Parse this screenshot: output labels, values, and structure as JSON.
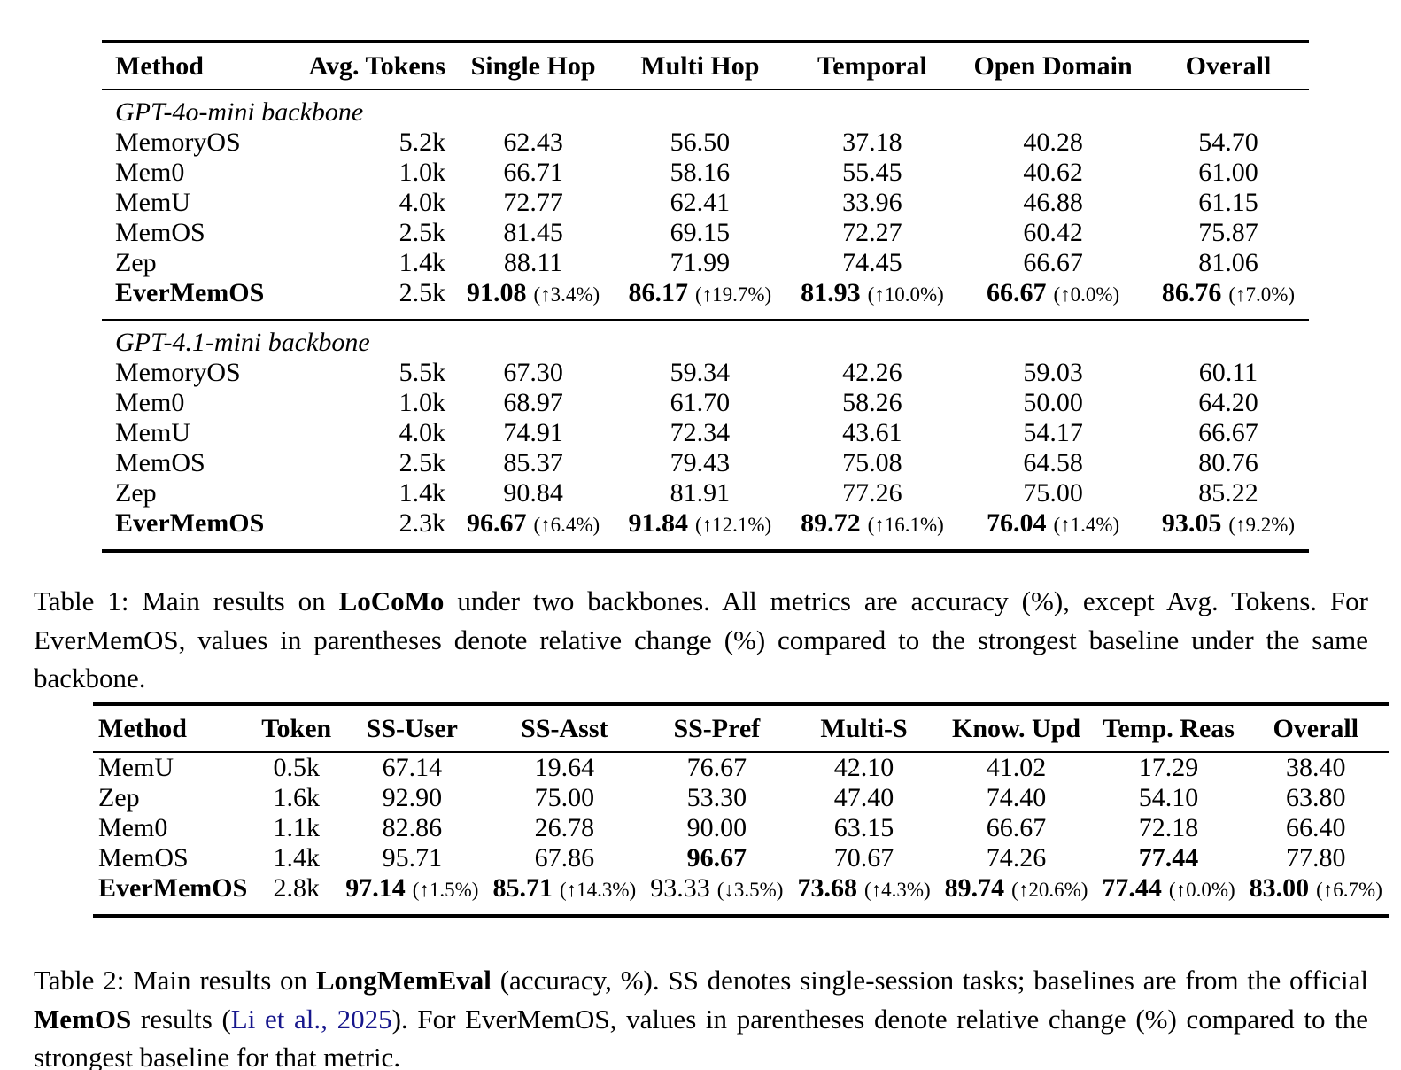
{
  "colors": {
    "background": "#ffffff",
    "text": "#000000",
    "citation_link": "#16168c"
  },
  "table1": {
    "columns": [
      "Method",
      "Avg. Tokens",
      "Single Hop",
      "Multi Hop",
      "Temporal",
      "Open Domain",
      "Overall"
    ],
    "groups": [
      {
        "label": "GPT-4o-mini backbone",
        "rows": [
          {
            "method": "MemoryOS",
            "b": false,
            "tokens": "5.2k",
            "metrics": [
              {
                "v": "62.43"
              },
              {
                "v": "56.50"
              },
              {
                "v": "37.18"
              },
              {
                "v": "40.28"
              },
              {
                "v": "54.70"
              }
            ]
          },
          {
            "method": "Mem0",
            "b": false,
            "tokens": "1.0k",
            "metrics": [
              {
                "v": "66.71"
              },
              {
                "v": "58.16"
              },
              {
                "v": "55.45"
              },
              {
                "v": "40.62"
              },
              {
                "v": "61.00"
              }
            ]
          },
          {
            "method": "MemU",
            "b": false,
            "tokens": "4.0k",
            "metrics": [
              {
                "v": "72.77"
              },
              {
                "v": "62.41"
              },
              {
                "v": "33.96"
              },
              {
                "v": "46.88"
              },
              {
                "v": "61.15"
              }
            ]
          },
          {
            "method": "MemOS",
            "b": false,
            "tokens": "2.5k",
            "metrics": [
              {
                "v": "81.45"
              },
              {
                "v": "69.15"
              },
              {
                "v": "72.27"
              },
              {
                "v": "60.42"
              },
              {
                "v": "75.87"
              }
            ]
          },
          {
            "method": "Zep",
            "b": false,
            "tokens": "1.4k",
            "metrics": [
              {
                "v": "88.11"
              },
              {
                "v": "71.99"
              },
              {
                "v": "74.45"
              },
              {
                "v": "66.67"
              },
              {
                "v": "81.06"
              }
            ]
          },
          {
            "method": "EverMemOS",
            "b": true,
            "tokens": "2.5k",
            "metrics": [
              {
                "v": "91.08",
                "b": true,
                "n": "(↑3.4%)"
              },
              {
                "v": "86.17",
                "b": true,
                "n": "(↑19.7%)"
              },
              {
                "v": "81.93",
                "b": true,
                "n": "(↑10.0%)"
              },
              {
                "v": "66.67",
                "b": true,
                "n": "(↑0.0%)"
              },
              {
                "v": "86.76",
                "b": true,
                "n": "(↑7.0%)"
              }
            ]
          }
        ]
      },
      {
        "label": "GPT-4.1-mini backbone",
        "rows": [
          {
            "method": "MemoryOS",
            "b": false,
            "tokens": "5.5k",
            "metrics": [
              {
                "v": "67.30"
              },
              {
                "v": "59.34"
              },
              {
                "v": "42.26"
              },
              {
                "v": "59.03"
              },
              {
                "v": "60.11"
              }
            ]
          },
          {
            "method": "Mem0",
            "b": false,
            "tokens": "1.0k",
            "metrics": [
              {
                "v": "68.97"
              },
              {
                "v": "61.70"
              },
              {
                "v": "58.26"
              },
              {
                "v": "50.00"
              },
              {
                "v": "64.20"
              }
            ]
          },
          {
            "method": "MemU",
            "b": false,
            "tokens": "4.0k",
            "metrics": [
              {
                "v": "74.91"
              },
              {
                "v": "72.34"
              },
              {
                "v": "43.61"
              },
              {
                "v": "54.17"
              },
              {
                "v": "66.67"
              }
            ]
          },
          {
            "method": "MemOS",
            "b": false,
            "tokens": "2.5k",
            "metrics": [
              {
                "v": "85.37"
              },
              {
                "v": "79.43"
              },
              {
                "v": "75.08"
              },
              {
                "v": "64.58"
              },
              {
                "v": "80.76"
              }
            ]
          },
          {
            "method": "Zep",
            "b": false,
            "tokens": "1.4k",
            "metrics": [
              {
                "v": "90.84"
              },
              {
                "v": "81.91"
              },
              {
                "v": "77.26"
              },
              {
                "v": "75.00"
              },
              {
                "v": "85.22"
              }
            ]
          },
          {
            "method": "EverMemOS",
            "b": true,
            "tokens": "2.3k",
            "metrics": [
              {
                "v": "96.67",
                "b": true,
                "n": "(↑6.4%)"
              },
              {
                "v": "91.84",
                "b": true,
                "n": "(↑12.1%)"
              },
              {
                "v": "89.72",
                "b": true,
                "n": "(↑16.1%)"
              },
              {
                "v": "76.04",
                "b": true,
                "n": "(↑1.4%)"
              },
              {
                "v": "93.05",
                "b": true,
                "n": "(↑9.2%)"
              }
            ]
          }
        ]
      }
    ],
    "caption_segments": [
      {
        "t": "Table 1: Main results on "
      },
      {
        "t": "LoCoMo",
        "s": "b"
      },
      {
        "t": " under two backbones. All metrics are accuracy (%), except Avg. Tokens. For EverMemOS, values in parentheses denote relative change (%) compared to the strongest baseline under the same backbone."
      }
    ]
  },
  "table2": {
    "columns": [
      "Method",
      "Token",
      "SS-User",
      "SS-Asst",
      "SS-Pref",
      "Multi-S",
      "Know. Upd",
      "Temp. Reas",
      "Overall"
    ],
    "rows": [
      {
        "method": "MemU",
        "b": false,
        "tokens": "0.5k",
        "metrics": [
          {
            "v": "67.14"
          },
          {
            "v": "19.64"
          },
          {
            "v": "76.67"
          },
          {
            "v": "42.10"
          },
          {
            "v": "41.02"
          },
          {
            "v": "17.29"
          },
          {
            "v": "38.40"
          }
        ]
      },
      {
        "method": "Zep",
        "b": false,
        "tokens": "1.6k",
        "metrics": [
          {
            "v": "92.90"
          },
          {
            "v": "75.00"
          },
          {
            "v": "53.30"
          },
          {
            "v": "47.40"
          },
          {
            "v": "74.40"
          },
          {
            "v": "54.10"
          },
          {
            "v": "63.80"
          }
        ]
      },
      {
        "method": "Mem0",
        "b": false,
        "tokens": "1.1k",
        "metrics": [
          {
            "v": "82.86"
          },
          {
            "v": "26.78"
          },
          {
            "v": "90.00"
          },
          {
            "v": "63.15"
          },
          {
            "v": "66.67"
          },
          {
            "v": "72.18"
          },
          {
            "v": "66.40"
          }
        ]
      },
      {
        "method": "MemOS",
        "b": false,
        "tokens": "1.4k",
        "metrics": [
          {
            "v": "95.71"
          },
          {
            "v": "67.86"
          },
          {
            "v": "96.67",
            "b": true
          },
          {
            "v": "70.67"
          },
          {
            "v": "74.26"
          },
          {
            "v": "77.44",
            "b": true
          },
          {
            "v": "77.80"
          }
        ]
      },
      {
        "method": "EverMemOS",
        "b": true,
        "tokens": "2.8k",
        "metrics": [
          {
            "v": "97.14",
            "b": true,
            "n": "(↑1.5%)"
          },
          {
            "v": "85.71",
            "b": true,
            "n": "(↑14.3%)"
          },
          {
            "v": "93.33",
            "b": false,
            "n": "(↓3.5%)"
          },
          {
            "v": "73.68",
            "b": true,
            "n": "(↑4.3%)"
          },
          {
            "v": "89.74",
            "b": true,
            "n": "(↑20.6%)"
          },
          {
            "v": "77.44",
            "b": true,
            "n": "(↑0.0%)"
          },
          {
            "v": "83.00",
            "b": true,
            "n": "(↑6.7%)"
          }
        ]
      }
    ],
    "caption_segments": [
      {
        "t": "Table 2: Main results on "
      },
      {
        "t": "LongMemEval",
        "s": "b"
      },
      {
        "t": " (accuracy, %). SS denotes single-session tasks; baselines are from the official "
      },
      {
        "t": "MemOS",
        "s": "b"
      },
      {
        "t": " results ("
      },
      {
        "t": "Li et al., 2025",
        "s": "link"
      },
      {
        "t": "). For EverMemOS, values in parentheses denote relative change (%) compared to the strongest baseline for that metric."
      }
    ]
  }
}
